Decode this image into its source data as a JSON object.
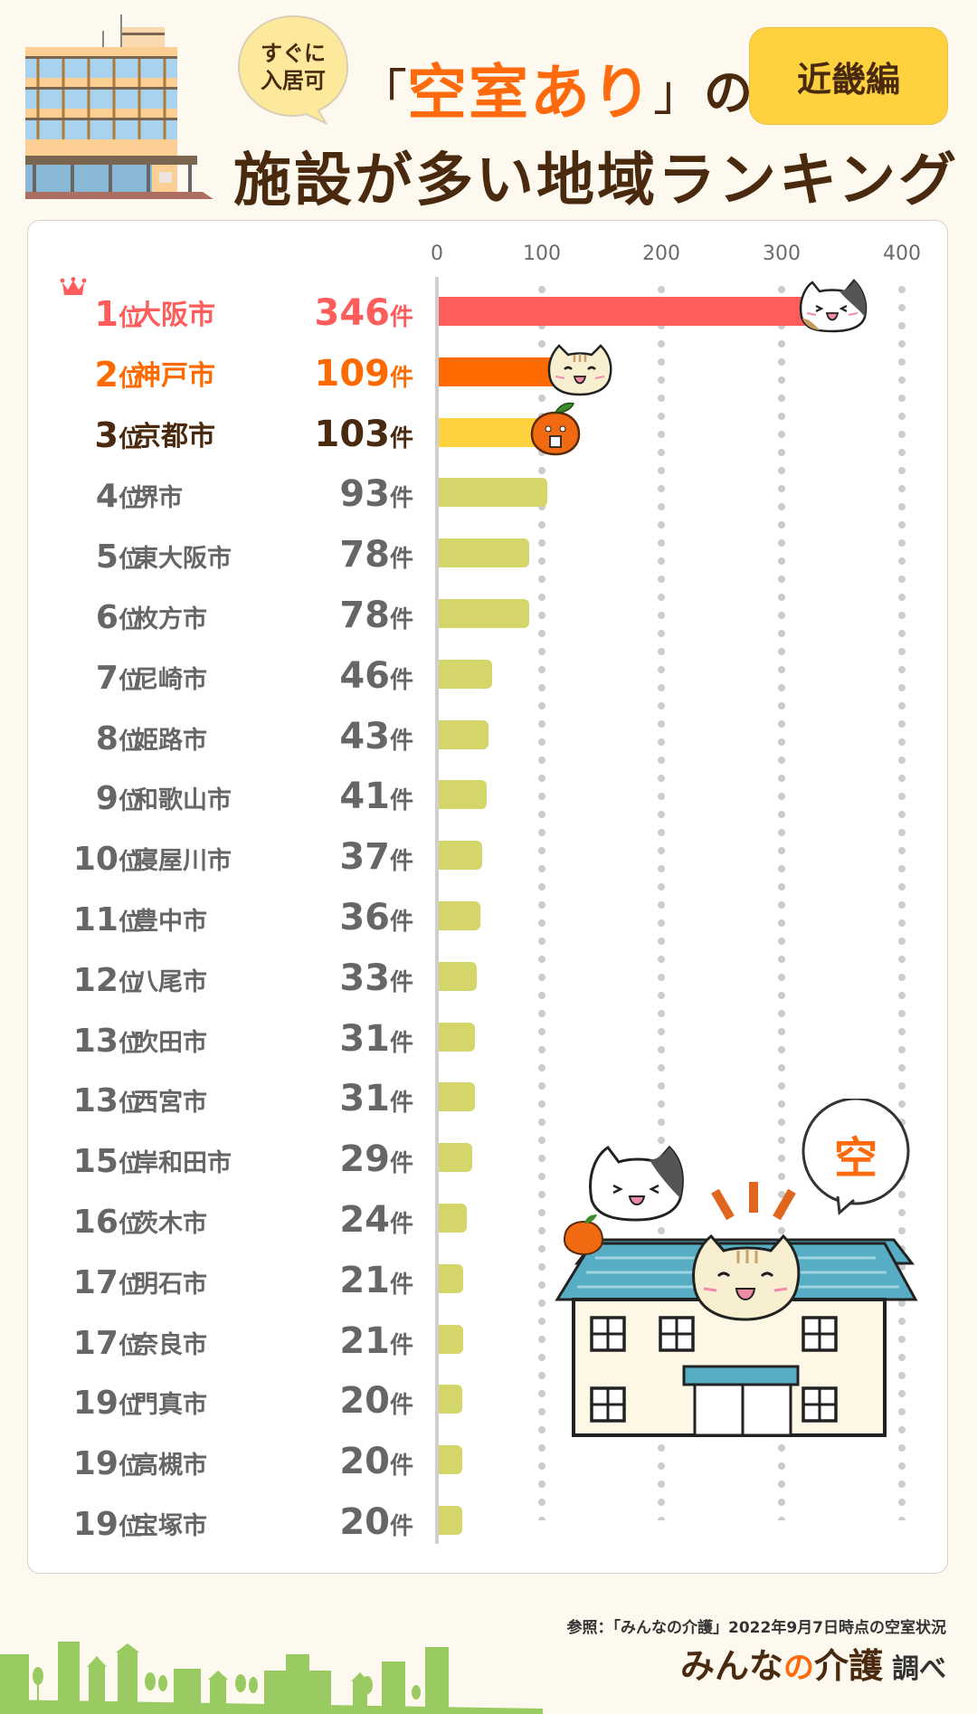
{
  "header": {
    "badge_small": [
      "すぐに",
      "入居可"
    ],
    "title_open_bracket": "「",
    "title_accent": "空室あり",
    "title_close_bracket": "」",
    "title_particle": "の",
    "title_line2": "施設が多い地域ランキング",
    "region_badge": "近畿編"
  },
  "colors": {
    "background": "#fef9ee",
    "rank1": "#ff5c5c",
    "rank2": "#ff6a00",
    "rank3": "#4a2a0e",
    "rank3_bar": "#fed13f",
    "others_text": "#666666",
    "others_bar": "#d4d66a",
    "title_accent": "#ff6a0d",
    "title_dark": "#4a2a0e"
  },
  "axis": {
    "ticks": [
      "0",
      "100",
      "200",
      "300",
      "400"
    ]
  },
  "units": {
    "rank_suffix": "位",
    "count_unit": "件"
  },
  "rows": [
    {
      "rank": "1",
      "city": "大阪市",
      "count": "346"
    },
    {
      "rank": "2",
      "city": "神戸市",
      "count": "109"
    },
    {
      "rank": "3",
      "city": "京都市",
      "count": "103"
    },
    {
      "rank": "4",
      "city": "堺市",
      "count": "93"
    },
    {
      "rank": "5",
      "city": "東大阪市",
      "count": "78"
    },
    {
      "rank": "6",
      "city": "枚方市",
      "count": "78"
    },
    {
      "rank": "7",
      "city": "尼崎市",
      "count": "46"
    },
    {
      "rank": "8",
      "city": "姫路市",
      "count": "43"
    },
    {
      "rank": "9",
      "city": "和歌山市",
      "count": "41"
    },
    {
      "rank": "10",
      "city": "寝屋川市",
      "count": "37"
    },
    {
      "rank": "11",
      "city": "豊中市",
      "count": "36"
    },
    {
      "rank": "12",
      "city": "八尾市",
      "count": "33"
    },
    {
      "rank": "13",
      "city": "吹田市",
      "count": "31"
    },
    {
      "rank": "13",
      "city": "西宮市",
      "count": "31"
    },
    {
      "rank": "15",
      "city": "岸和田市",
      "count": "29"
    },
    {
      "rank": "16",
      "city": "茨木市",
      "count": "24"
    },
    {
      "rank": "17",
      "city": "明石市",
      "count": "21"
    },
    {
      "rank": "17",
      "city": "奈良市",
      "count": "21"
    },
    {
      "rank": "19",
      "city": "門真市",
      "count": "20"
    },
    {
      "rank": "19",
      "city": "高槻市",
      "count": "20"
    },
    {
      "rank": "19",
      "city": "宝塚市",
      "count": "20"
    }
  ],
  "illustration": {
    "speech_bubble": "空"
  },
  "footer": {
    "source": "参照：「みんなの介護」2022年9月7日時点の空室状況",
    "brand_a": "みんな",
    "brand_no": "の",
    "brand_b": "介護",
    "brand_sub": "調べ"
  },
  "chart_data": {
    "type": "bar",
    "orientation": "horizontal",
    "title": "すぐに入居可「空室あり」の施設が多い地域ランキング（近畿編）",
    "xlabel": "",
    "ylabel": "",
    "unit": "件",
    "xlim": [
      0,
      400
    ],
    "xticks": [
      0,
      100,
      200,
      300,
      400
    ],
    "grid": "vertical dotted",
    "categories": [
      "大阪市",
      "神戸市",
      "京都市",
      "堺市",
      "東大阪市",
      "枚方市",
      "尼崎市",
      "姫路市",
      "和歌山市",
      "寝屋川市",
      "豊中市",
      "八尾市",
      "吹田市",
      "西宮市",
      "岸和田市",
      "茨木市",
      "明石市",
      "奈良市",
      "門真市",
      "高槻市",
      "宝塚市"
    ],
    "ranks": [
      1,
      2,
      3,
      4,
      5,
      6,
      7,
      8,
      9,
      10,
      11,
      12,
      13,
      13,
      15,
      16,
      17,
      17,
      19,
      19,
      19
    ],
    "values": [
      346,
      109,
      103,
      93,
      78,
      78,
      46,
      43,
      41,
      37,
      36,
      33,
      31,
      31,
      29,
      24,
      21,
      21,
      20,
      20,
      20
    ],
    "source": "参照：「みんなの介護」2022年9月7日時点の空室状況"
  }
}
